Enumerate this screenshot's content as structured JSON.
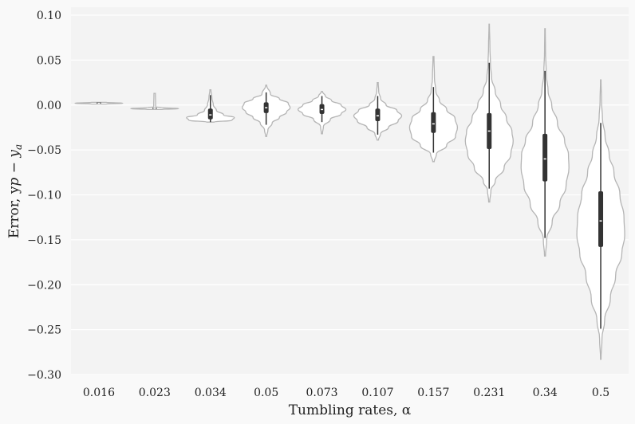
{
  "chart_data": {
    "type": "violin",
    "xlabel": "Tumbling rates, α",
    "ylabel": "Error, y",
    "ylim": [
      -0.3,
      0.1
    ],
    "yticks": [
      0.1,
      0.05,
      0.0,
      -0.05,
      -0.1,
      -0.15,
      -0.2,
      -0.25,
      -0.3
    ],
    "ytick_labels": [
      "0.10",
      "0.05",
      "0.00",
      "−0.05",
      "−0.10",
      "−0.15",
      "−0.20",
      "−0.25",
      "−0.30"
    ],
    "grid": true,
    "categories": [
      "0.016",
      "0.023",
      "0.034",
      "0.05",
      "0.073",
      "0.107",
      "0.157",
      "0.231",
      "0.34",
      "0.5"
    ],
    "violins": [
      {
        "min": 0.001,
        "q1": 0.002,
        "median": 0.002,
        "q3": 0.003,
        "max": 0.003,
        "whisker_low": 0.002,
        "whisker_high": 0.003,
        "profile": [
          [
            0.001,
            0.3
          ],
          [
            0.002,
            1.0
          ],
          [
            0.003,
            0.3
          ]
        ]
      },
      {
        "min": -0.005,
        "q1": -0.004,
        "median": -0.004,
        "q3": -0.003,
        "max": 0.013,
        "whisker_low": -0.004,
        "whisker_high": -0.003,
        "profile": [
          [
            -0.005,
            0.3
          ],
          [
            -0.004,
            1.0
          ],
          [
            -0.003,
            0.3
          ],
          [
            -0.002,
            0.04
          ],
          [
            0.013,
            0.03
          ]
        ]
      },
      {
        "min": -0.019,
        "q1": -0.016,
        "median": -0.011,
        "q3": -0.004,
        "max": 0.017,
        "whisker_low": -0.019,
        "whisker_high": 0.011,
        "profile": [
          [
            -0.019,
            0.15
          ],
          [
            -0.017,
            0.9
          ],
          [
            -0.014,
            1.0
          ],
          [
            -0.011,
            0.55
          ],
          [
            -0.006,
            0.25
          ],
          [
            0.0,
            0.12
          ],
          [
            0.008,
            0.06
          ],
          [
            0.017,
            0.02
          ]
        ]
      },
      {
        "min": -0.035,
        "q1": -0.009,
        "median": -0.003,
        "q3": 0.003,
        "max": 0.022,
        "whisker_low": -0.022,
        "whisker_high": 0.014,
        "profile": [
          [
            -0.035,
            0.02
          ],
          [
            -0.028,
            0.07
          ],
          [
            -0.02,
            0.25
          ],
          [
            -0.014,
            0.55
          ],
          [
            -0.008,
            0.85
          ],
          [
            -0.003,
            1.0
          ],
          [
            0.002,
            0.92
          ],
          [
            0.007,
            0.55
          ],
          [
            0.012,
            0.18
          ],
          [
            0.022,
            0.02
          ]
        ]
      },
      {
        "min": -0.032,
        "q1": -0.01,
        "median": -0.005,
        "q3": 0.001,
        "max": 0.015,
        "whisker_low": -0.019,
        "whisker_high": 0.01,
        "profile": [
          [
            -0.032,
            0.02
          ],
          [
            -0.024,
            0.06
          ],
          [
            -0.016,
            0.35
          ],
          [
            -0.01,
            0.8
          ],
          [
            -0.005,
            1.0
          ],
          [
            0.0,
            0.8
          ],
          [
            0.005,
            0.4
          ],
          [
            0.01,
            0.14
          ],
          [
            0.015,
            0.02
          ]
        ]
      },
      {
        "min": -0.039,
        "q1": -0.018,
        "median": -0.012,
        "q3": -0.004,
        "max": 0.025,
        "whisker_low": -0.033,
        "whisker_high": 0.01,
        "profile": [
          [
            -0.039,
            0.03
          ],
          [
            -0.032,
            0.12
          ],
          [
            -0.025,
            0.45
          ],
          [
            -0.018,
            0.85
          ],
          [
            -0.012,
            1.0
          ],
          [
            -0.006,
            0.8
          ],
          [
            0.0,
            0.35
          ],
          [
            0.007,
            0.12
          ],
          [
            0.015,
            0.04
          ],
          [
            0.025,
            0.02
          ]
        ]
      },
      {
        "min": -0.063,
        "q1": -0.031,
        "median": -0.021,
        "q3": -0.008,
        "max": 0.054,
        "whisker_low": -0.053,
        "whisker_high": 0.02,
        "profile": [
          [
            -0.063,
            0.03
          ],
          [
            -0.055,
            0.12
          ],
          [
            -0.045,
            0.55
          ],
          [
            -0.035,
            0.92
          ],
          [
            -0.025,
            1.0
          ],
          [
            -0.015,
            0.9
          ],
          [
            -0.005,
            0.55
          ],
          [
            0.005,
            0.25
          ],
          [
            0.015,
            0.1
          ],
          [
            0.03,
            0.04
          ],
          [
            0.054,
            0.02
          ]
        ]
      },
      {
        "min": -0.108,
        "q1": -0.049,
        "median": -0.029,
        "q3": -0.009,
        "max": 0.09,
        "whisker_low": -0.093,
        "whisker_high": 0.047,
        "profile": [
          [
            -0.108,
            0.02
          ],
          [
            -0.095,
            0.07
          ],
          [
            -0.085,
            0.25
          ],
          [
            -0.07,
            0.62
          ],
          [
            -0.055,
            0.9
          ],
          [
            -0.04,
            1.0
          ],
          [
            -0.03,
            0.95
          ],
          [
            -0.015,
            0.72
          ],
          [
            0.0,
            0.48
          ],
          [
            0.015,
            0.25
          ],
          [
            0.03,
            0.1
          ],
          [
            0.045,
            0.05
          ],
          [
            0.065,
            0.03
          ],
          [
            0.09,
            0.01
          ]
        ]
      },
      {
        "min": -0.168,
        "q1": -0.085,
        "median": -0.06,
        "q3": -0.032,
        "max": 0.085,
        "whisker_low": -0.148,
        "whisker_high": 0.038,
        "profile": [
          [
            -0.168,
            0.02
          ],
          [
            -0.15,
            0.07
          ],
          [
            -0.13,
            0.3
          ],
          [
            -0.11,
            0.62
          ],
          [
            -0.09,
            0.88
          ],
          [
            -0.07,
            1.0
          ],
          [
            -0.055,
            0.98
          ],
          [
            -0.04,
            0.82
          ],
          [
            -0.02,
            0.52
          ],
          [
            0.0,
            0.28
          ],
          [
            0.015,
            0.13
          ],
          [
            0.035,
            0.05
          ],
          [
            0.06,
            0.02
          ],
          [
            0.085,
            0.01
          ]
        ]
      },
      {
        "min": -0.283,
        "q1": -0.158,
        "median": -0.129,
        "q3": -0.096,
        "max": 0.028,
        "whisker_low": -0.249,
        "whisker_high": -0.02,
        "profile": [
          [
            -0.283,
            0.01
          ],
          [
            -0.26,
            0.05
          ],
          [
            -0.24,
            0.16
          ],
          [
            -0.215,
            0.4
          ],
          [
            -0.19,
            0.62
          ],
          [
            -0.165,
            0.88
          ],
          [
            -0.145,
            1.0
          ],
          [
            -0.125,
            0.97
          ],
          [
            -0.1,
            0.8
          ],
          [
            -0.075,
            0.55
          ],
          [
            -0.055,
            0.35
          ],
          [
            -0.035,
            0.18
          ],
          [
            -0.015,
            0.07
          ],
          [
            0.005,
            0.03
          ],
          [
            0.028,
            0.01
          ]
        ]
      }
    ]
  }
}
